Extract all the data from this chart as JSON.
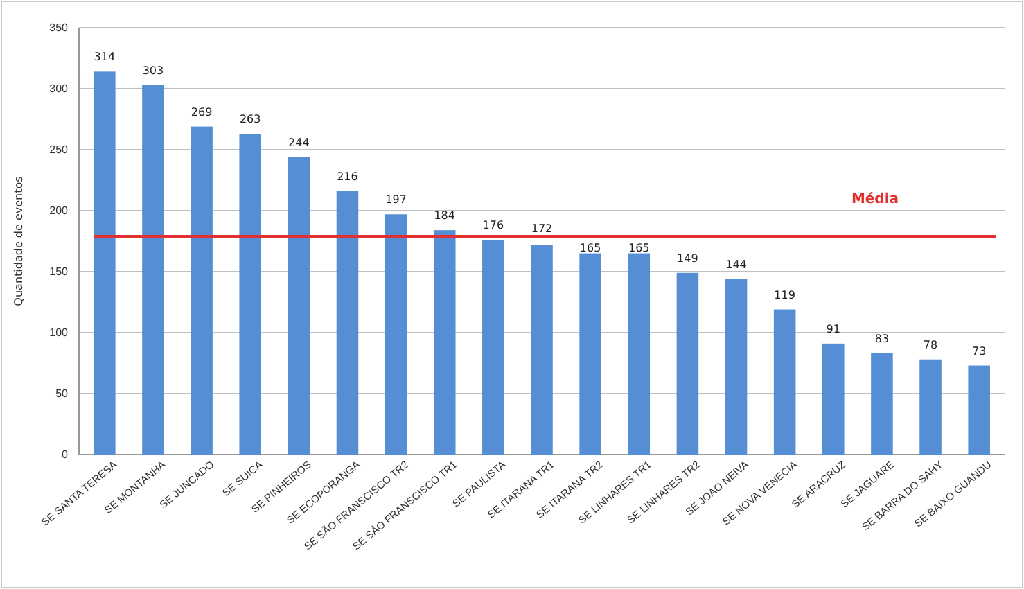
{
  "chart_data": {
    "type": "bar",
    "ylabel": "Quantidade de eventos",
    "categories": [
      "SE SANTA TERESA",
      "SE MONTANHA",
      "SE JUNCADO",
      "SE SUICA",
      "SE PINHEIROS",
      "SE ECOPORANGA",
      "SE SÃO FRANSCISCO  TR2",
      "SE SÃO FRANSCISCO  TR1",
      "SE PAULISTA",
      "SE ITARANA  TR1",
      "SE ITARANA  TR2",
      "SE LINHARES TR1",
      "SE LINHARES TR2",
      "SE JOAO NEIVA",
      "SE NOVA VENECIA",
      "SE ARACRUZ",
      "SE JAGUARE",
      "SE BARRA DO SAHY",
      "SE BAIXO GUANDU"
    ],
    "values": [
      314,
      303,
      269,
      263,
      244,
      216,
      197,
      184,
      176,
      172,
      165,
      165,
      149,
      144,
      119,
      91,
      83,
      78,
      73
    ],
    "color": "#558ed5",
    "ylim": [
      0,
      350
    ],
    "yticks": [
      0,
      50,
      100,
      150,
      200,
      250,
      300,
      350
    ],
    "grid": "y",
    "data_labels": true,
    "ref_lines": [
      {
        "axis": "y",
        "value": 179,
        "label": "Média",
        "color": "#e03030"
      }
    ]
  }
}
